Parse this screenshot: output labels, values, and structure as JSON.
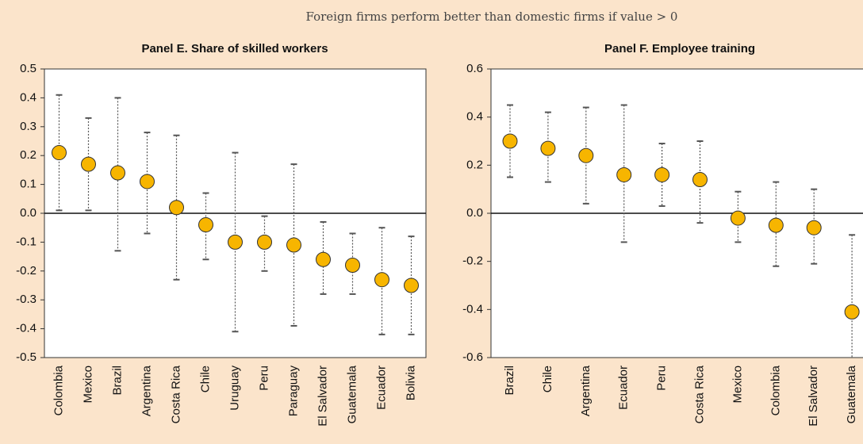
{
  "header": "Foreign firms perform better than domestic firms if value > 0",
  "chart_data": [
    {
      "type": "errorbar",
      "title": "Panel E. Share of skilled workers",
      "categories": [
        "Colombia",
        "Mexico",
        "Brazil",
        "Argentina",
        "Costa Rica",
        "Chile",
        "Uruguay",
        "Peru",
        "Paraguay",
        "El Salvador",
        "Guatemala",
        "Ecuador",
        "Bolivia"
      ],
      "values": [
        0.21,
        0.17,
        0.14,
        0.11,
        0.02,
        -0.04,
        -0.1,
        -0.1,
        -0.11,
        -0.16,
        -0.18,
        -0.23,
        -0.25
      ],
      "upper": [
        0.41,
        0.33,
        0.4,
        0.28,
        0.27,
        0.07,
        0.21,
        -0.01,
        0.17,
        -0.03,
        -0.07,
        -0.05,
        -0.08
      ],
      "lower": [
        0.01,
        0.01,
        -0.13,
        -0.07,
        -0.23,
        -0.16,
        -0.41,
        -0.2,
        -0.39,
        -0.28,
        -0.28,
        -0.42,
        -0.42
      ],
      "color": "#f7b500",
      "ylim": [
        -0.5,
        0.5
      ],
      "yticks": [
        -0.5,
        -0.4,
        -0.3,
        -0.2,
        -0.1,
        {
          "value": 0,
          "label": "0.0"
        },
        0.1,
        0.2,
        0.3,
        0.4,
        0.5
      ]
    },
    {
      "type": "errorbar",
      "title": "Panel F. Employee training",
      "categories": [
        "Brazil",
        "Chile",
        "Argentina",
        "Ecuador",
        "Peru",
        "Costa Rica",
        "Mexico",
        "Colombia",
        "El Salvador",
        "Guatemala"
      ],
      "values": [
        0.3,
        0.27,
        0.24,
        0.16,
        0.16,
        0.14,
        -0.02,
        -0.05,
        -0.06,
        -0.41
      ],
      "upper": [
        0.45,
        0.42,
        0.44,
        0.45,
        0.29,
        0.3,
        0.09,
        0.13,
        0.1,
        -0.09
      ],
      "lower": [
        0.15,
        0.13,
        0.04,
        -0.12,
        0.03,
        -0.04,
        -0.12,
        -0.22,
        -0.21,
        -0.73
      ],
      "color": "#f7b500",
      "ylim": [
        -0.6,
        0.6
      ],
      "yticks": [
        -0.6,
        -0.4,
        -0.2,
        {
          "value": 0,
          "label": "0.0"
        },
        0.2,
        0.4,
        0.6
      ]
    }
  ]
}
